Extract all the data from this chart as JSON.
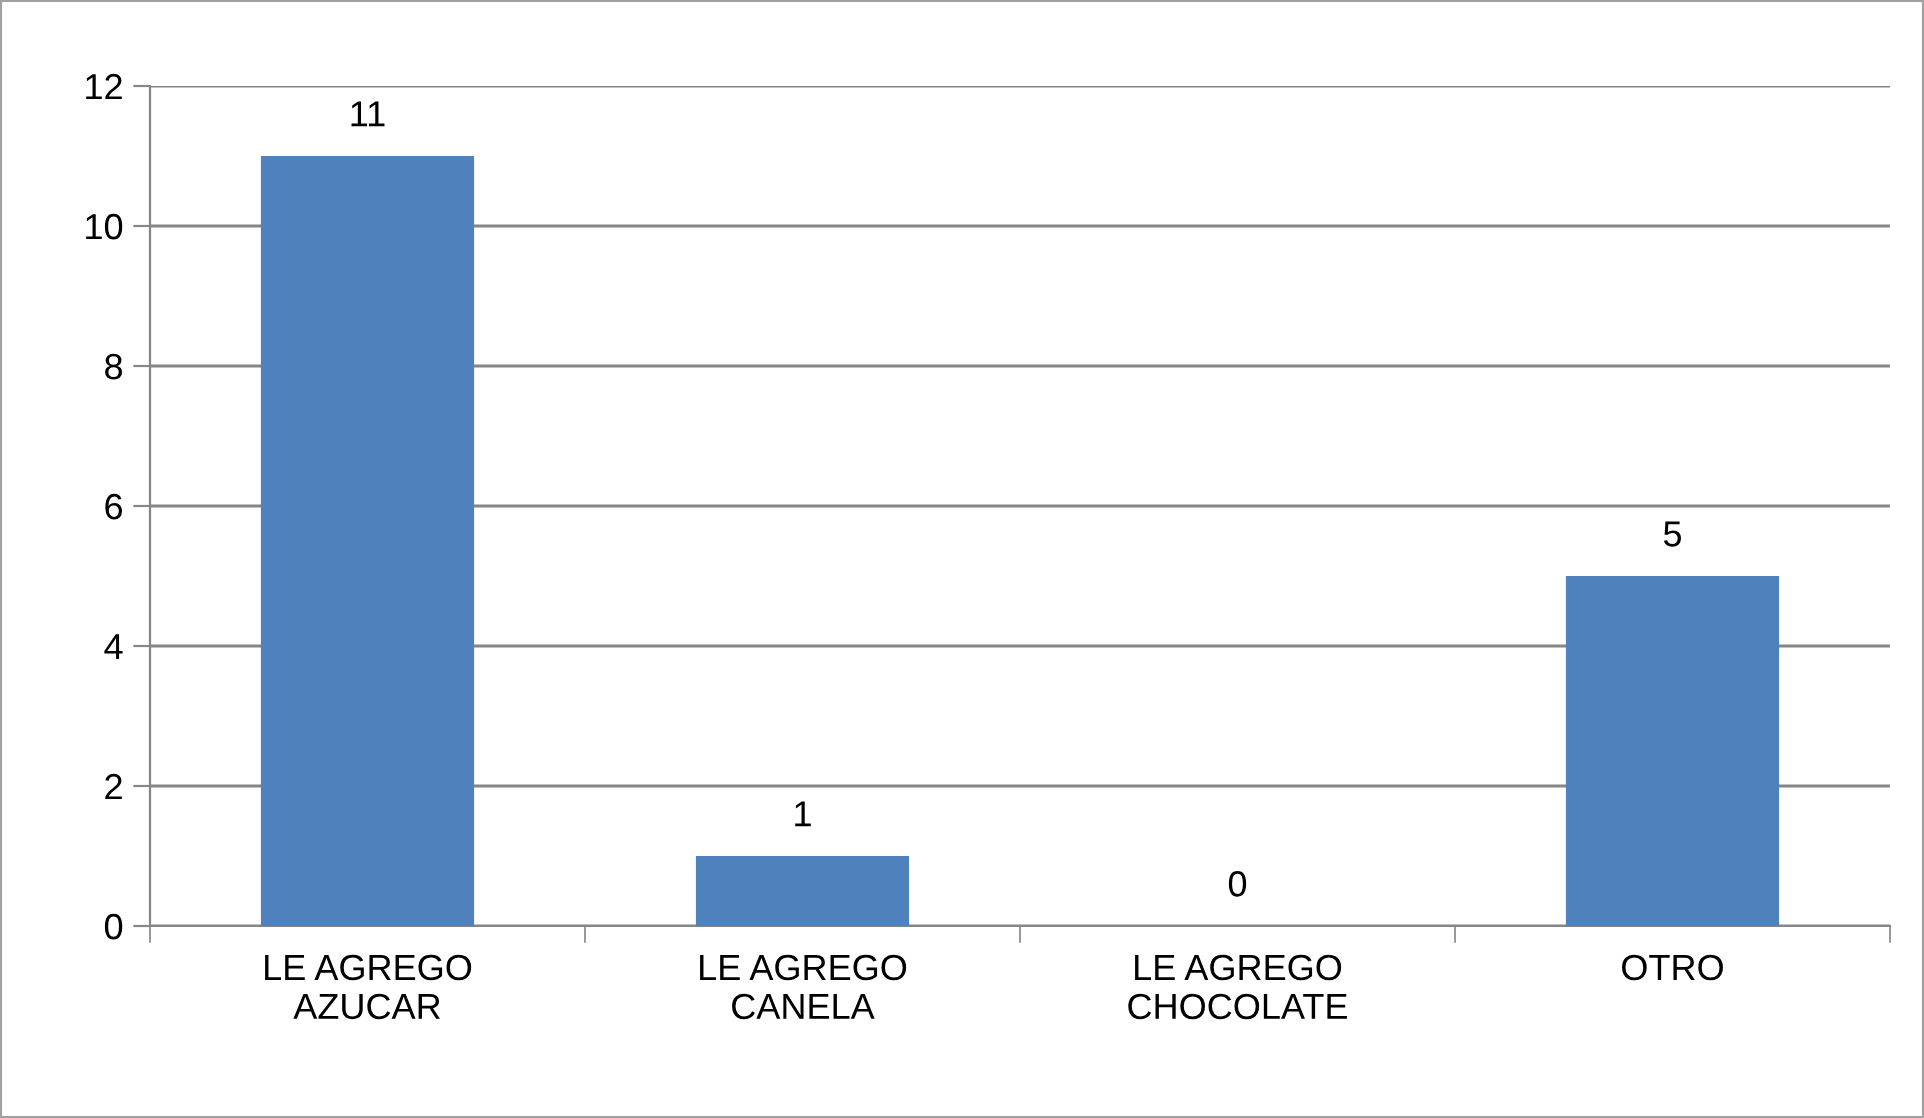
{
  "chart_data": {
    "type": "bar",
    "categories": [
      "LE AGREGO\nAZUCAR",
      "LE AGREGO\nCANELA",
      "LE AGREGO\nCHOCOLATE",
      "OTRO"
    ],
    "values": [
      11,
      1,
      0,
      5
    ],
    "color": "#4f81bd",
    "ylim": [
      0,
      12
    ],
    "yticks": [
      0,
      2,
      4,
      6,
      8,
      10,
      12
    ],
    "grid": "y",
    "data_labels": true
  }
}
